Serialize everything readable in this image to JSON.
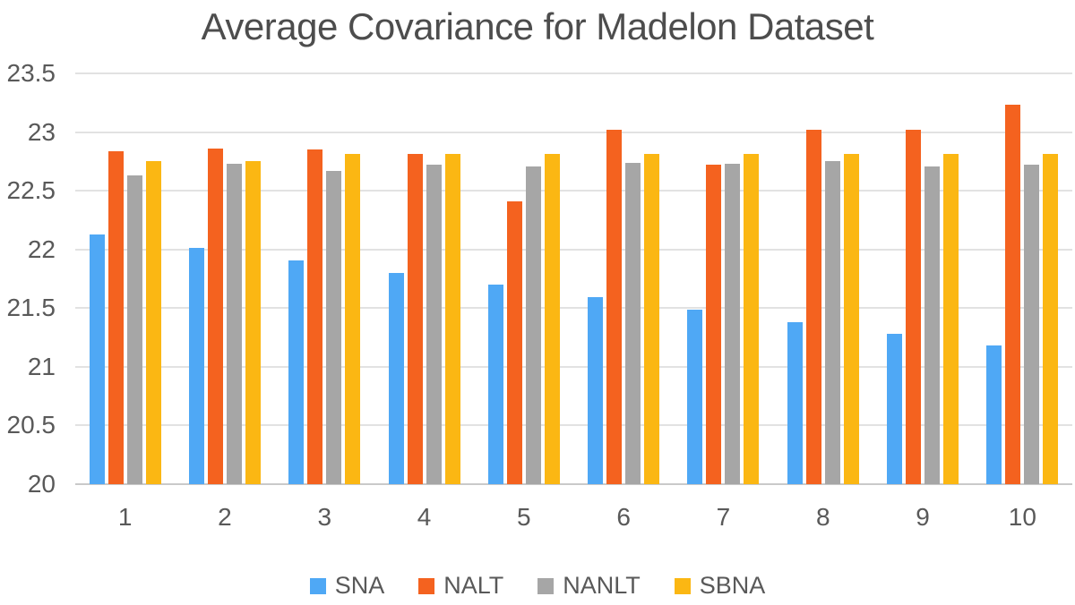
{
  "chart_data": {
    "type": "bar",
    "title": "Average Covariance for Madelon Dataset",
    "xlabel": "",
    "ylabel": "",
    "categories": [
      "1",
      "2",
      "3",
      "4",
      "5",
      "6",
      "7",
      "8",
      "9",
      "10"
    ],
    "series": [
      {
        "name": "SNA",
        "color": "#4FA8F5",
        "values": [
          22.13,
          22.01,
          21.91,
          21.8,
          21.7,
          21.59,
          21.49,
          21.38,
          21.28,
          21.18
        ]
      },
      {
        "name": "NALT",
        "color": "#F4621F",
        "values": [
          22.84,
          22.86,
          22.85,
          22.81,
          22.41,
          23.02,
          22.72,
          23.02,
          23.02,
          23.23
        ]
      },
      {
        "name": "NANLT",
        "color": "#A6A6A6",
        "values": [
          22.63,
          22.73,
          22.67,
          22.72,
          22.71,
          22.74,
          22.73,
          22.75,
          22.71,
          22.72
        ]
      },
      {
        "name": "SBNA",
        "color": "#FBB713",
        "values": [
          22.75,
          22.75,
          22.81,
          22.81,
          22.81,
          22.81,
          22.81,
          22.81,
          22.81,
          22.81
        ]
      }
    ],
    "ylim": [
      20,
      23.5
    ],
    "ytick_step": 0.5,
    "ytick_labels": [
      "20",
      "20.5",
      "21",
      "21.5",
      "22",
      "22.5",
      "23",
      "23.5"
    ],
    "grid": true,
    "legend_position": "bottom"
  },
  "colors": {
    "gridline": "#e2e2e2",
    "axis_line": "#c9c9c9",
    "tick_text": "#595959",
    "title_text": "#4d4d4d",
    "background": "#ffffff"
  }
}
